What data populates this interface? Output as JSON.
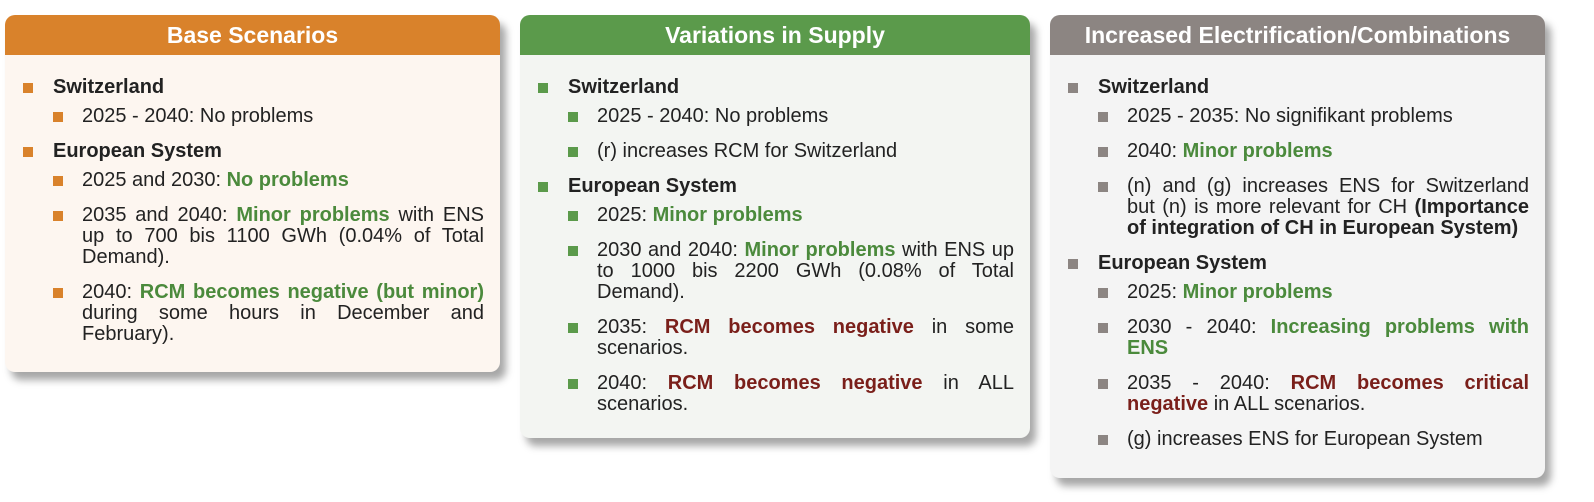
{
  "columns": [
    {
      "title": "Base Scenarios",
      "color": "#d9822b",
      "background": "#fdf6f0",
      "groups": [
        {
          "label": "Switzerland",
          "items": [
            [
              {
                "text": "2025 - 2040: No problems",
                "style": "plain"
              }
            ]
          ]
        },
        {
          "label": "European System",
          "items": [
            [
              {
                "text": "2025 and 2030: ",
                "style": "plain"
              },
              {
                "text": "No problems",
                "style": "green"
              }
            ],
            [
              {
                "text": "2035 and 2040: ",
                "style": "plain"
              },
              {
                "text": "Minor problems",
                "style": "green"
              },
              {
                "text": " with ENS up to 700 bis 1100 GWh (0.04% of Total Demand).",
                "style": "plain"
              }
            ],
            [
              {
                "text": "2040: ",
                "style": "plain"
              },
              {
                "text": "RCM becomes negative (but minor)",
                "style": "green"
              },
              {
                "text": " during some hours in December and February).",
                "style": "plain"
              }
            ]
          ]
        }
      ]
    },
    {
      "title": "Variations in Supply",
      "color": "#5b9a4b",
      "background": "#f3f5f2",
      "groups": [
        {
          "label": "Switzerland",
          "items": [
            [
              {
                "text": "2025 - 2040: No problems",
                "style": "plain"
              }
            ],
            [
              {
                "text": "(r) increases RCM for Switzerland",
                "style": "plain"
              }
            ]
          ]
        },
        {
          "label": "European System",
          "items": [
            [
              {
                "text": "2025: ",
                "style": "plain"
              },
              {
                "text": "Minor problems",
                "style": "green"
              }
            ],
            [
              {
                "text": "2030 and 2040: ",
                "style": "plain"
              },
              {
                "text": "Minor problems",
                "style": "green"
              },
              {
                "text": " with ENS up to 1000 bis 2200 GWh (0.08% of Total Demand).",
                "style": "plain"
              }
            ],
            [
              {
                "text": "2035: ",
                "style": "plain"
              },
              {
                "text": "RCM becomes negative",
                "style": "red"
              },
              {
                "text": " in some scenarios.",
                "style": "plain"
              }
            ],
            [
              {
                "text": "2040: ",
                "style": "plain"
              },
              {
                "text": "RCM becomes negative",
                "style": "red"
              },
              {
                "text": " in ALL scenarios.",
                "style": "plain"
              }
            ]
          ]
        }
      ]
    },
    {
      "title": "Increased Electrification/Combinations",
      "color": "#8c8582",
      "background": "#f4f4f4",
      "groups": [
        {
          "label": "Switzerland",
          "items": [
            [
              {
                "text": "2025 - 2035: No signifikant problems",
                "style": "plain"
              }
            ],
            [
              {
                "text": "2040: ",
                "style": "plain"
              },
              {
                "text": "Minor problems",
                "style": "green"
              }
            ],
            [
              {
                "text": "(n) and (g) increases ENS for Switzerland but (n) is more relevant for CH ",
                "style": "plain"
              },
              {
                "text": "(Importance of integration of CH in European System)",
                "style": "bold"
              }
            ]
          ]
        },
        {
          "label": "European System",
          "items": [
            [
              {
                "text": "2025: ",
                "style": "plain"
              },
              {
                "text": "Minor problems",
                "style": "green"
              }
            ],
            [
              {
                "text": "2030 - 2040: ",
                "style": "plain"
              },
              {
                "text": "Increasing problems with ENS",
                "style": "green"
              }
            ],
            [
              {
                "text": "2035 - 2040: ",
                "style": "plain"
              },
              {
                "text": "RCM becomes critical negative",
                "style": "red"
              },
              {
                "text": " in ALL scenarios.",
                "style": "plain"
              }
            ],
            [
              {
                "text": "(g) increases ENS for European System",
                "style": "plain"
              }
            ]
          ]
        }
      ]
    }
  ]
}
